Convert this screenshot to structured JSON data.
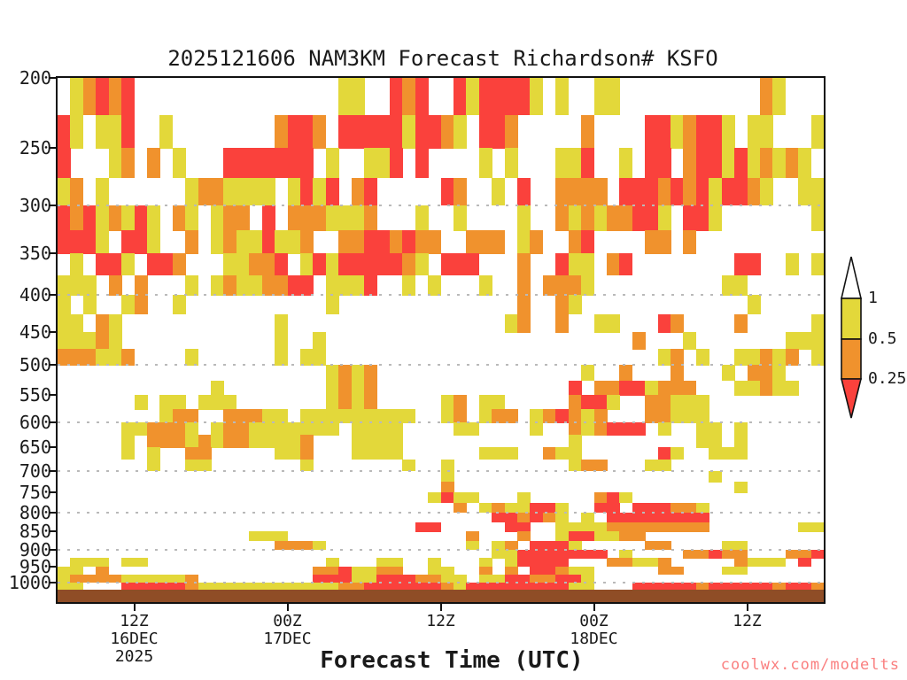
{
  "title": "2025121606 NAM3KM Forecast Richardson# KSFO",
  "x_axis": {
    "title": "Forecast Time (UTC)",
    "ticks": [
      {
        "hour": 6,
        "lines": [
          "12Z",
          "16DEC",
          "2025"
        ]
      },
      {
        "hour": 18,
        "lines": [
          "00Z",
          "17DEC"
        ]
      },
      {
        "hour": 30,
        "lines": [
          "12Z"
        ]
      },
      {
        "hour": 42,
        "lines": [
          "00Z",
          "18DEC"
        ]
      },
      {
        "hour": 54,
        "lines": [
          "12Z"
        ]
      }
    ]
  },
  "y_axis": {
    "tick_values": [
      200,
      250,
      300,
      350,
      400,
      450,
      500,
      550,
      600,
      650,
      700,
      750,
      800,
      850,
      900,
      950,
      1000
    ],
    "gridline_values": [
      300,
      400,
      500,
      600,
      700,
      800,
      900,
      1000
    ]
  },
  "colorbar": {
    "labels": [
      "1",
      "0.5",
      "0.25"
    ],
    "segment_colors": {
      "above_1": "#ffffff",
      "0.5_to_1": "#e3d83a",
      "0.25_to_0.5": "#f0922d",
      "below_0.25": "#fa413c"
    }
  },
  "watermark": "coolwx.com/modelts",
  "colors": {
    "yellow": "#e3d83a",
    "orange": "#f0922d",
    "red": "#fa413c",
    "terrain_brown": "#8f4d26",
    "watermark_red": "#fa7f7f",
    "gridline_gray": "#b9b9b9"
  },
  "chart_data": {
    "type": "heatmap",
    "title": "2025121606 NAM3KM Forecast Richardson# KSFO",
    "xlabel": "Forecast Time (UTC)",
    "x_hours_range": [
      0,
      60
    ],
    "y_scale": "log-pressure",
    "y_range_hpa": [
      200,
      1025
    ],
    "legend": {
      "thresholds": [
        1,
        0.5,
        0.25
      ],
      "meaning": "Richardson number bins: yellow 0.5-1, orange 0.25-0.5, red <0.25, white >1"
    },
    "pressure_band_edges": [
      200,
      225,
      250,
      275,
      300,
      325,
      350,
      375,
      400,
      425,
      450,
      475,
      500,
      525,
      550,
      575,
      600,
      625,
      650,
      675,
      700,
      725,
      750,
      775,
      800,
      825,
      850,
      875,
      900,
      925,
      950,
      975,
      1000,
      1025
    ],
    "cell_codes": {
      ".": "white",
      "Y": "yellow",
      "O": "orange",
      "R": "red"
    },
    "grid": [
      ".YOROR................YY..ROR..RYRRRRY.Y..YY...........OY...",
      "RY.YYR..Y........ORRO.RRRRRYRROY.RRO.....O....RRYORRY.YY...Y",
      "R...YO.O.Y...RRRRRRR.Y..YYR.R....Y.Y...YYR..Y.RR.ORRYRYOYOY.",
      "YO.Y......YOOYYYY.YRYR.OR.....RO..Y.R..OOOO.RRRORORYRROY..YY",
      "RORYOYRY.OY.YOO.R.OOOYYYO...Y..Y....Y..OYOYOORRY.RRY.......Y",
      "RRRY.RRY..O.YOYYRYYO..OORROROO..OOO.YO..OR....OO.O..........",
      ".Y.RRY.RRO...YYOOR.YRYRRRRROY.RRR...O..RYY.OR........RR..Y.Y",
      "YYY.O.O...Y.YOYYOORR.YYYR..Y.Y...Y..O.OOOY..........YY......",
      "Y.Y..YO..Y...........Y..............O..OY.............Y.....",
      "YY.OY............Y.................YO..O..YY...RO....O.....Y",
      "YYYOY............Y..Y........................O...Y.......YYY",
      "OOOYYO....Y......Y.YY..........................YO.Y..YYOYO.Y",
      ".....................YOYO................Y..O...O...Y.OOY...",
      "............Y........YOYO...............R.OORRYOOO...YYOYY..",
      "......Y.YY.YYY.......YOYO.....YO.YY.....ORRY..OOYYY.........",
      "........YOO..OOOYY.YYYYYYYYY..YO.YOO.YOROYO...OOYYY.........",
      ".....YYOOOY.YOOYYYYYYY.YYYY....YY....Y..OYORRR.Y..YY.Y......",
      ".....Y.OOOYOYOOYYYYO...YYYY.............Y.........YY.Y......",
      ".....Y.Y..OO.....YYO...YYYY......YYY..OYY......RY..YYY......",
      ".......Y..YY.......Y.......Y..Y.........YOO...YY............",
      "..............................Y....................Y.......",
      "..............................O......................Y.....",
      ".............................YRYY...Y.....ORY...............",
      "...............................O.YOYYRRY..RR.RRROOY.........",
      "..................................RROROY.Y.RRRRRRRR.........",
      "............................RR.....RR..YYYYOOOOOOOO.......YY",
      "...............YYY..............O...O..YRRYYOO..............",
      ".................OOOY...........Y.YO.RRRY.....OO....YY......",
      "..................................YYRRRRRRR.Y....OOROO...OOR",
      ".YYY.YY..............Y...YY..Y...Y.YRRRR...OOYYO.....OYYY.R.",
      "YY.O................OORYYOO..YY..O.O.RROYY.....OO...YY......",
      "YOOOOYYYYYO.........RRRYYRRROOYY.YYRROORRY..................",
      "YY...RRRRROYYYYYYYYYYYOORRRRRROYRRRRRRRRYY...RRRRRORRRRRORRO"
    ]
  }
}
